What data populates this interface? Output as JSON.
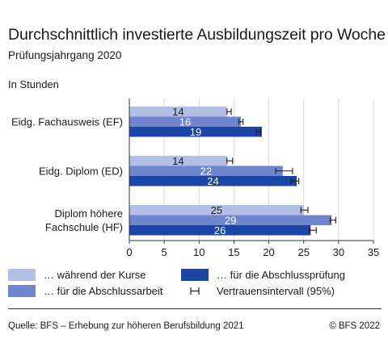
{
  "title": "Durchschnittlich investierte Ausbildungszeit pro Woche",
  "subtitle": "Prüfungsjahrgang 2020",
  "unit_label": "In Stunden",
  "source": "Quelle: BFS – Erhebung zur höheren Berufsbildung 2021",
  "copyright": "© BFS 2022",
  "colors": {
    "light": "#b3bfe6",
    "mid": "#6f86cf",
    "dark": "#1b45a6",
    "grid": "#d9d9d9",
    "axis": "#333333"
  },
  "legend": {
    "kurse": "… während der Kurse",
    "abschlussarbeit": "… für die Abschlussarbeit",
    "abschlusspruefung": "… für die Abschlussprüfung",
    "ci": "Vertrauensintervall (95%)"
  },
  "chart_data": {
    "type": "bar",
    "orientation": "horizontal",
    "categories": [
      [
        "Eidg. Fachausweis (EF)"
      ],
      [
        "Eidg. Diplom (ED)"
      ],
      [
        "Diplom höhere",
        "Fachschule (HF)"
      ]
    ],
    "series": [
      {
        "name": "… während der Kurse",
        "values": [
          14,
          14,
          25
        ],
        "ci_low": [
          14,
          14,
          24.6
        ],
        "ci_high": [
          14.6,
          14.8,
          25.6
        ],
        "color": "#b3bfe6"
      },
      {
        "name": "… für die Abschlussarbeit",
        "values": [
          16,
          22,
          29
        ],
        "ci_low": [
          15.7,
          21,
          28.8
        ],
        "ci_high": [
          16.3,
          23.4,
          29.6
        ],
        "color": "#6f86cf"
      },
      {
        "name": "… für die Abschlussprüfung",
        "values": [
          19,
          24,
          26
        ],
        "ci_low": [
          18.2,
          23.2,
          25.8
        ],
        "ci_high": [
          18.8,
          24.3,
          26.8
        ],
        "color": "#1b45a6"
      }
    ],
    "xlim": [
      0,
      35
    ],
    "xticks": [
      0,
      5,
      10,
      15,
      20,
      25,
      30,
      35
    ],
    "grid": true,
    "legend_position": "bottom"
  }
}
